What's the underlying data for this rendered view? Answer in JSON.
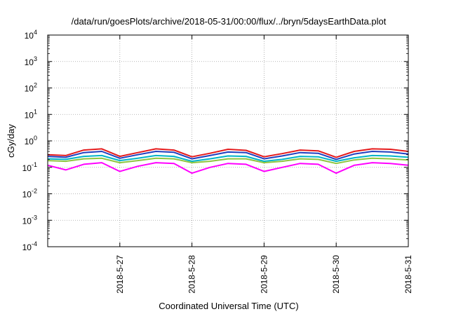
{
  "chart_data": {
    "type": "line",
    "title": "/data/run/goesPlots/archive/2018-05-31/00:00/flux/../bryn/5daysEarthData.plot",
    "xlabel": "Coordinated Universal Time (UTC)",
    "ylabel": "cGy/day",
    "yscale": "log",
    "ylim": [
      0.0001,
      10000
    ],
    "xlim": [
      "2018-05-26 00:00",
      "2018-05-31 00:00"
    ],
    "grid": true,
    "legend": "none",
    "x_ticks": [
      "2018-5-27",
      "2018-5-28",
      "2018-5-29",
      "2018-5-30",
      "2018-5-31"
    ],
    "y_ticks": [
      {
        "base": "10",
        "exp": "-4"
      },
      {
        "base": "10",
        "exp": "-3"
      },
      {
        "base": "10",
        "exp": "-2"
      },
      {
        "base": "10",
        "exp": "-1"
      },
      {
        "base": "10",
        "exp": "0"
      },
      {
        "base": "10",
        "exp": "1"
      },
      {
        "base": "10",
        "exp": "2"
      },
      {
        "base": "10",
        "exp": "3"
      },
      {
        "base": "10",
        "exp": "4"
      }
    ],
    "x": [
      "2018-05-26 00:00",
      "2018-05-26 06:00",
      "2018-05-26 12:00",
      "2018-05-26 18:00",
      "2018-05-27 00:00",
      "2018-05-27 06:00",
      "2018-05-27 12:00",
      "2018-05-27 18:00",
      "2018-05-28 00:00",
      "2018-05-28 06:00",
      "2018-05-28 12:00",
      "2018-05-28 18:00",
      "2018-05-29 00:00",
      "2018-05-29 06:00",
      "2018-05-29 12:00",
      "2018-05-29 18:00",
      "2018-05-30 00:00",
      "2018-05-30 06:00",
      "2018-05-30 12:00",
      "2018-05-30 18:00",
      "2018-05-31 00:00"
    ],
    "series": [
      {
        "color": "#e41a1c",
        "values": [
          0.3,
          0.28,
          0.45,
          0.5,
          0.26,
          0.36,
          0.5,
          0.45,
          0.25,
          0.34,
          0.48,
          0.44,
          0.25,
          0.33,
          0.45,
          0.42,
          0.24,
          0.4,
          0.5,
          0.48,
          0.4
        ]
      },
      {
        "color": "#1f3fbf",
        "values": [
          0.26,
          0.24,
          0.36,
          0.4,
          0.22,
          0.3,
          0.4,
          0.37,
          0.21,
          0.28,
          0.38,
          0.36,
          0.21,
          0.27,
          0.36,
          0.34,
          0.2,
          0.32,
          0.4,
          0.38,
          0.32
        ]
      },
      {
        "color": "#00b4c8",
        "values": [
          0.21,
          0.2,
          0.26,
          0.28,
          0.18,
          0.22,
          0.28,
          0.26,
          0.17,
          0.21,
          0.27,
          0.26,
          0.17,
          0.2,
          0.26,
          0.25,
          0.17,
          0.23,
          0.28,
          0.27,
          0.24
        ]
      },
      {
        "color": "#8dc63f",
        "values": [
          0.18,
          0.17,
          0.21,
          0.22,
          0.15,
          0.18,
          0.22,
          0.21,
          0.15,
          0.17,
          0.21,
          0.21,
          0.15,
          0.17,
          0.21,
          0.2,
          0.14,
          0.19,
          0.22,
          0.21,
          0.19
        ]
      },
      {
        "color": "#ff00ff",
        "values": [
          0.12,
          0.08,
          0.13,
          0.15,
          0.07,
          0.11,
          0.15,
          0.14,
          0.06,
          0.1,
          0.14,
          0.13,
          0.07,
          0.1,
          0.14,
          0.13,
          0.06,
          0.12,
          0.15,
          0.14,
          0.12
        ]
      }
    ]
  }
}
